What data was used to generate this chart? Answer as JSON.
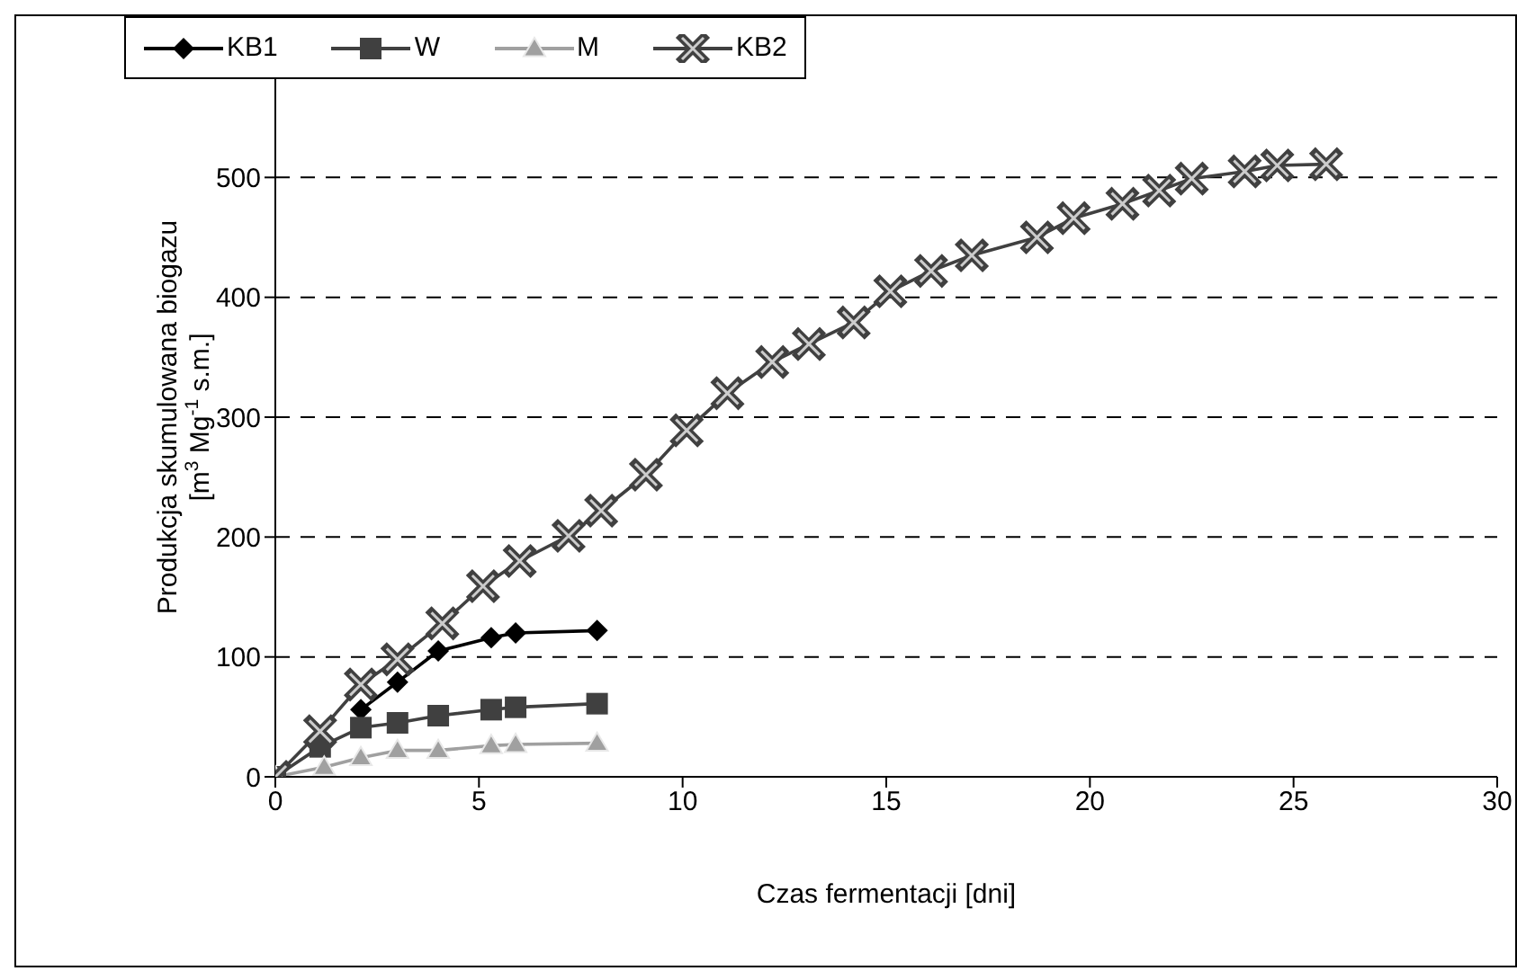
{
  "chart_data": {
    "type": "line",
    "xlabel": "Czas fermentacji [dni]",
    "ylabel": "Produkcja skumulowana biogazu [m$^{3}$ Mg$^{-1}$ s.m.]",
    "xlim": [
      0,
      30
    ],
    "xticks": [
      0,
      5,
      10,
      15,
      20,
      25,
      30
    ],
    "ylim": [
      0,
      600
    ],
    "yticks": [
      0,
      100,
      200,
      300,
      400,
      500
    ],
    "grid": "y",
    "legend": "top",
    "line_style": "solid",
    "series": [
      {
        "name": "KB1",
        "color": "#000000",
        "marker": "diamond",
        "x": [
          2.1,
          3.0,
          4.0,
          5.3,
          5.9,
          7.9
        ],
        "values": [
          56,
          79,
          105,
          116,
          120,
          122
        ]
      },
      {
        "name": "W",
        "color": "#404040",
        "marker": "square",
        "x": [
          0,
          1.1,
          2.1,
          3.0,
          4.0,
          5.3,
          5.9,
          7.9
        ],
        "values": [
          0,
          25,
          41,
          45,
          51,
          56,
          58,
          61
        ]
      },
      {
        "name": "M",
        "color": "#a0a0a0",
        "marker": "triangle",
        "x": [
          0,
          1.2,
          2.1,
          3.0,
          4.0,
          5.3,
          5.9,
          7.9
        ],
        "values": [
          0,
          8,
          16,
          22,
          22,
          26,
          27,
          28
        ]
      },
      {
        "name": "KB2",
        "color": "#404040",
        "marker": "cross",
        "x": [
          0,
          1.1,
          2.1,
          3.0,
          4.1,
          5.1,
          6.0,
          7.2,
          8.0,
          9.1,
          10.1,
          11.1,
          12.2,
          13.1,
          14.2,
          15.1,
          16.1,
          17.1,
          18.7,
          19.6,
          20.8,
          21.7,
          22.5,
          23.8,
          24.6,
          25.8
        ],
        "values": [
          0,
          38,
          77,
          98,
          128,
          159,
          180,
          201,
          222,
          252,
          289,
          320,
          346,
          361,
          379,
          405,
          422,
          435,
          450,
          466,
          478,
          489,
          499,
          505,
          510,
          511
        ]
      }
    ]
  }
}
